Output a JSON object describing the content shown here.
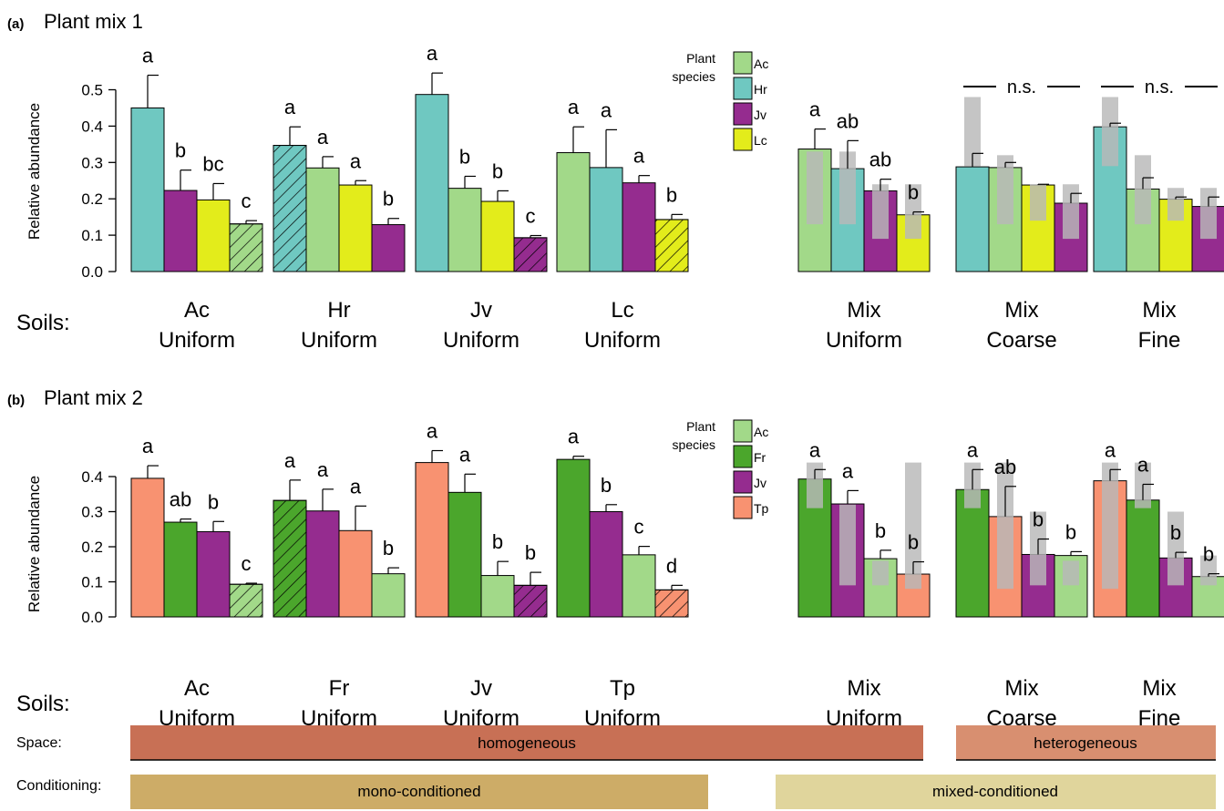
{
  "colors": {
    "Ac": "#a2d989",
    "Hr": "#6fc8c1",
    "Jv": "#952c8f",
    "Lc": "#e3ec1b",
    "Fr": "#4ba62c",
    "Tp": "#f89271",
    "homogeneous": "#c87055",
    "heterogeneous": "#d88f70",
    "mono": "#cdac67",
    "mixed": "#e0d59c",
    "grey": "#b8b8b8"
  },
  "labels": {
    "soils": "Soils:",
    "space": "Space:",
    "conditioning": "Conditioning:",
    "homogeneous": "homogeneous",
    "heterogeneous": "heterogeneous",
    "mono": "mono-conditioned",
    "mixed": "mixed-conditioned"
  },
  "chart_data": [
    {
      "type": "bar",
      "panel": "(a)",
      "title": "Plant mix 1",
      "ylabel": "Relative abundance",
      "ylim": [
        0,
        0.55
      ],
      "yticks": [
        "0.0",
        "0.1",
        "0.2",
        "0.3",
        "0.4",
        "0.5"
      ],
      "legend": {
        "title": [
          "Plant",
          "species"
        ],
        "entries": [
          "Ac",
          "Hr",
          "Jv",
          "Lc"
        ]
      },
      "groups": [
        {
          "label": [
            "Ac",
            "Uniform"
          ],
          "bars": [
            {
              "species": "Hr",
              "value": 0.45,
              "err": 0.54,
              "letter": "a"
            },
            {
              "species": "Jv",
              "value": 0.223,
              "err": 0.279,
              "letter": "b"
            },
            {
              "species": "Lc",
              "value": 0.197,
              "err": 0.242,
              "letter": "bc"
            },
            {
              "species": "Ac",
              "value": 0.131,
              "err": 0.14,
              "letter": "c",
              "hatch": true
            }
          ]
        },
        {
          "label": [
            "Hr",
            "Uniform"
          ],
          "bars": [
            {
              "species": "Hr",
              "value": 0.347,
              "err": 0.398,
              "letter": "a",
              "hatch": true
            },
            {
              "species": "Ac",
              "value": 0.285,
              "err": 0.316,
              "letter": "a"
            },
            {
              "species": "Lc",
              "value": 0.238,
              "err": 0.25,
              "letter": "a"
            },
            {
              "species": "Jv",
              "value": 0.129,
              "err": 0.146,
              "letter": "b"
            }
          ]
        },
        {
          "label": [
            "Jv",
            "Uniform"
          ],
          "bars": [
            {
              "species": "Hr",
              "value": 0.487,
              "err": 0.546,
              "letter": "a"
            },
            {
              "species": "Ac",
              "value": 0.229,
              "err": 0.262,
              "letter": "b"
            },
            {
              "species": "Lc",
              "value": 0.193,
              "err": 0.222,
              "letter": "b"
            },
            {
              "species": "Jv",
              "value": 0.093,
              "err": 0.099,
              "letter": "c",
              "hatch": true
            }
          ]
        },
        {
          "label": [
            "Lc",
            "Uniform"
          ],
          "bars": [
            {
              "species": "Ac",
              "value": 0.327,
              "err": 0.398,
              "letter": "a"
            },
            {
              "species": "Hr",
              "value": 0.286,
              "err": 0.39,
              "letter": "a"
            },
            {
              "species": "Jv",
              "value": 0.244,
              "err": 0.264,
              "letter": "a"
            },
            {
              "species": "Lc",
              "value": 0.143,
              "err": 0.157,
              "letter": "b",
              "hatch": true
            }
          ]
        },
        {
          "label": [
            "Mix",
            "Uniform"
          ],
          "bars": [
            {
              "species": "Ac",
              "value": 0.337,
              "err": 0.392,
              "letter": "a",
              "range": [
                0.13,
                0.33
              ]
            },
            {
              "species": "Hr",
              "value": 0.283,
              "err": 0.36,
              "letter": "ab",
              "range": [
                0.13,
                0.33
              ]
            },
            {
              "species": "Jv",
              "value": 0.222,
              "err": 0.254,
              "letter": "ab",
              "range": [
                0.09,
                0.24
              ]
            },
            {
              "species": "Lc",
              "value": 0.156,
              "err": 0.164,
              "letter": "b",
              "range": [
                0.09,
                0.24
              ]
            }
          ]
        },
        {
          "label": [
            "Mix",
            "Coarse"
          ],
          "sig": "n.s.",
          "bars": [
            {
              "species": "Hr",
              "value": 0.288,
              "err": 0.325,
              "range": [
                0.29,
                0.48
              ]
            },
            {
              "species": "Ac",
              "value": 0.286,
              "err": 0.3,
              "range": [
                0.13,
                0.32
              ]
            },
            {
              "species": "Lc",
              "value": 0.238,
              "err": 0.24,
              "range": [
                0.14,
                0.24
              ]
            },
            {
              "species": "Jv",
              "value": 0.188,
              "err": 0.215,
              "range": [
                0.09,
                0.24
              ]
            }
          ]
        },
        {
          "label": [
            "Mix",
            "Fine"
          ],
          "sig": "n.s.",
          "bars": [
            {
              "species": "Hr",
              "value": 0.398,
              "err": 0.408,
              "range": [
                0.29,
                0.48
              ]
            },
            {
              "species": "Ac",
              "value": 0.227,
              "err": 0.258,
              "range": [
                0.13,
                0.32
              ]
            },
            {
              "species": "Lc",
              "value": 0.199,
              "err": 0.205,
              "range": [
                0.14,
                0.23
              ]
            },
            {
              "species": "Jv",
              "value": 0.179,
              "err": 0.205,
              "range": [
                0.09,
                0.23
              ]
            }
          ]
        }
      ]
    },
    {
      "type": "bar",
      "panel": "(b)",
      "title": "Plant mix 2",
      "ylabel": "Relative abundance",
      "ylim": [
        0,
        0.45
      ],
      "yticks": [
        "0.0",
        "0.1",
        "0.2",
        "0.3",
        "0.4"
      ],
      "legend": {
        "title": [
          "Plant",
          "species"
        ],
        "entries": [
          "Ac",
          "Fr",
          "Jv",
          "Tp"
        ]
      },
      "groups": [
        {
          "label": [
            "Ac",
            "Uniform"
          ],
          "bars": [
            {
              "species": "Tp",
              "value": 0.395,
              "err": 0.431,
              "letter": "a"
            },
            {
              "species": "Fr",
              "value": 0.27,
              "err": 0.279,
              "letter": "ab"
            },
            {
              "species": "Jv",
              "value": 0.243,
              "err": 0.272,
              "letter": "b"
            },
            {
              "species": "Ac",
              "value": 0.093,
              "err": 0.096,
              "letter": "c",
              "hatch": true
            }
          ]
        },
        {
          "label": [
            "Fr",
            "Uniform"
          ],
          "bars": [
            {
              "species": "Fr",
              "value": 0.332,
              "err": 0.39,
              "letter": "a",
              "hatch": true
            },
            {
              "species": "Jv",
              "value": 0.302,
              "err": 0.364,
              "letter": "a"
            },
            {
              "species": "Tp",
              "value": 0.246,
              "err": 0.316,
              "letter": "a"
            },
            {
              "species": "Ac",
              "value": 0.123,
              "err": 0.14,
              "letter": "b"
            }
          ]
        },
        {
          "label": [
            "Jv",
            "Uniform"
          ],
          "bars": [
            {
              "species": "Tp",
              "value": 0.44,
              "err": 0.474,
              "letter": "a"
            },
            {
              "species": "Fr",
              "value": 0.355,
              "err": 0.407,
              "letter": "a"
            },
            {
              "species": "Ac",
              "value": 0.118,
              "err": 0.158,
              "letter": "b"
            },
            {
              "species": "Jv",
              "value": 0.09,
              "err": 0.127,
              "letter": "b",
              "hatch": true
            }
          ]
        },
        {
          "label": [
            "Tp",
            "Uniform"
          ],
          "bars": [
            {
              "species": "Fr",
              "value": 0.449,
              "err": 0.458,
              "letter": "a"
            },
            {
              "species": "Jv",
              "value": 0.3,
              "err": 0.32,
              "letter": "b"
            },
            {
              "species": "Ac",
              "value": 0.177,
              "err": 0.201,
              "letter": "c"
            },
            {
              "species": "Tp",
              "value": 0.077,
              "err": 0.09,
              "letter": "d",
              "hatch": true
            }
          ]
        },
        {
          "label": [
            "Mix",
            "Uniform"
          ],
          "bars": [
            {
              "species": "Fr",
              "value": 0.393,
              "err": 0.42,
              "letter": "a",
              "range": [
                0.31,
                0.44
              ]
            },
            {
              "species": "Jv",
              "value": 0.322,
              "err": 0.36,
              "letter": "a",
              "range": [
                0.09,
                0.32
              ]
            },
            {
              "species": "Ac",
              "value": 0.166,
              "err": 0.19,
              "letter": "b",
              "range": [
                0.09,
                0.16
              ]
            },
            {
              "species": "Tp",
              "value": 0.122,
              "err": 0.157,
              "letter": "b",
              "range": [
                0.08,
                0.44
              ]
            }
          ]
        },
        {
          "label": [
            "Mix",
            "Coarse"
          ],
          "bars": [
            {
              "species": "Fr",
              "value": 0.363,
              "err": 0.42,
              "letter": "a",
              "range": [
                0.31,
                0.44
              ]
            },
            {
              "species": "Tp",
              "value": 0.286,
              "err": 0.372,
              "letter": "ab",
              "range": [
                0.08,
                0.44
              ]
            },
            {
              "species": "Jv",
              "value": 0.178,
              "err": 0.222,
              "letter": "b",
              "range": [
                0.09,
                0.3
              ]
            },
            {
              "species": "Ac",
              "value": 0.175,
              "err": 0.186,
              "letter": "b",
              "range": [
                0.09,
                0.16
              ]
            }
          ]
        },
        {
          "label": [
            "Mix",
            "Fine"
          ],
          "bars": [
            {
              "species": "Tp",
              "value": 0.388,
              "err": 0.42,
              "letter": "a",
              "range": [
                0.08,
                0.44
              ]
            },
            {
              "species": "Fr",
              "value": 0.333,
              "err": 0.378,
              "letter": "a",
              "range": [
                0.31,
                0.44
              ]
            },
            {
              "species": "Jv",
              "value": 0.168,
              "err": 0.184,
              "letter": "b",
              "range": [
                0.09,
                0.3
              ]
            },
            {
              "species": "Ac",
              "value": 0.115,
              "err": 0.123,
              "letter": "b",
              "range": [
                0.09,
                0.175
              ]
            }
          ]
        }
      ]
    }
  ]
}
